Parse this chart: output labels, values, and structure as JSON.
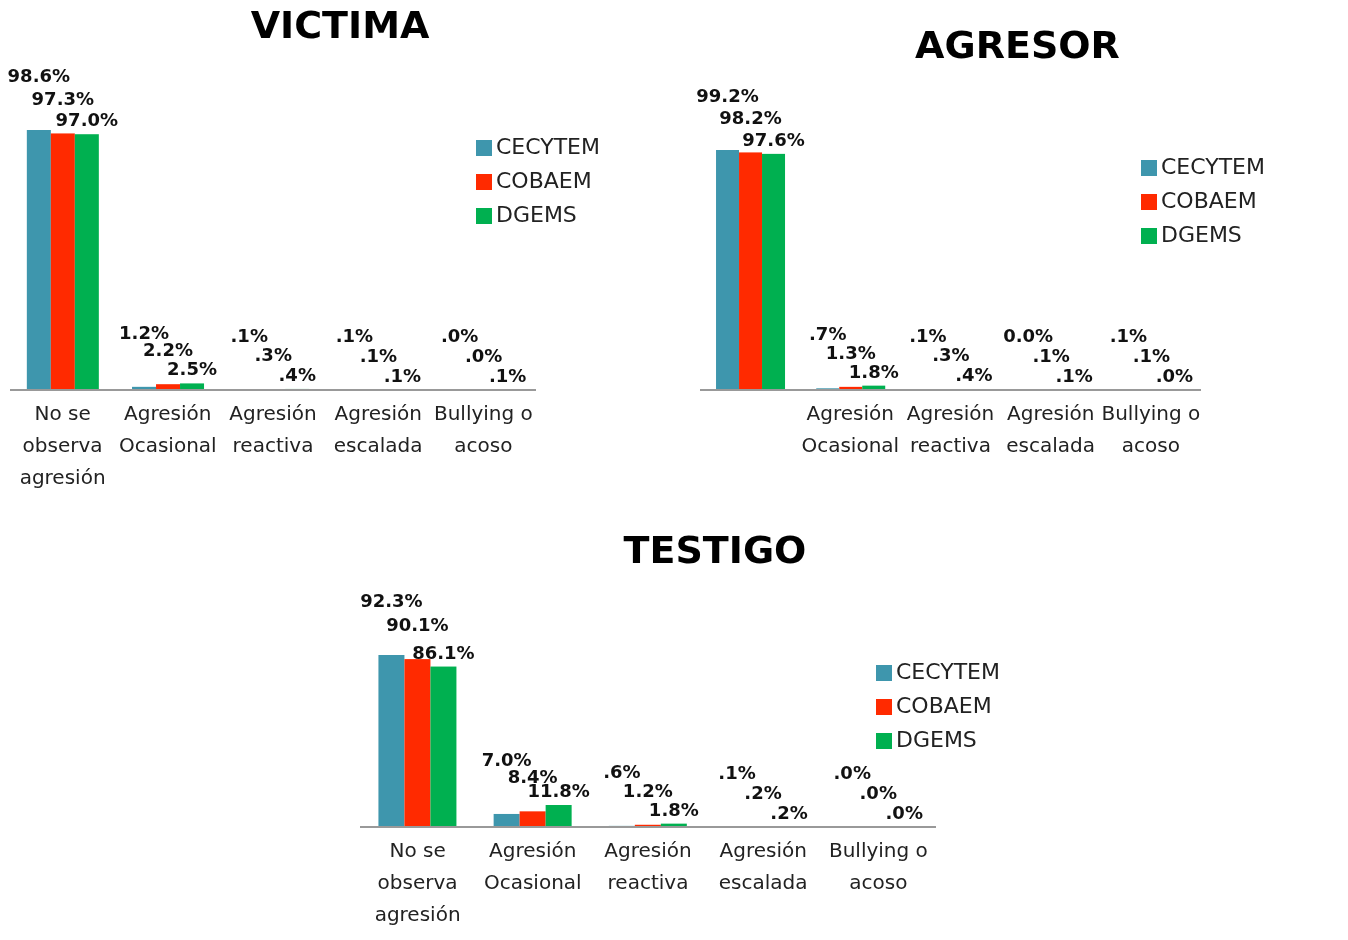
{
  "chart_data": [
    {
      "type": "bar",
      "title": "VICTIMA",
      "categories": [
        "No se observa agresión",
        "Agresión Ocasional",
        "Agresión reactiva",
        "Agresión escalada",
        "Bullying o acoso"
      ],
      "legend": "top right",
      "series": [
        {
          "name": "CECYTEM",
          "color": "#3e96ad",
          "values": [
            98.6,
            1.2,
            0.1,
            0.1,
            0.0
          ],
          "value_labels": [
            "98.6%",
            "1.2%",
            ".1%",
            ".1%",
            ".0%"
          ]
        },
        {
          "name": "COBAEM",
          "color": "#ff2a00",
          "values": [
            97.3,
            2.2,
            0.3,
            0.1,
            0.0
          ],
          "value_labels": [
            "97.3%",
            "2.2%",
            ".3%",
            ".1%",
            ".0%"
          ]
        },
        {
          "name": "DGEMS",
          "color": "#00b050",
          "values": [
            97.0,
            2.5,
            0.4,
            0.1,
            0.1
          ],
          "value_labels": [
            "97.0%",
            "2.5%",
            ".4%",
            ".1%",
            ".1%"
          ]
        }
      ]
    },
    {
      "type": "bar",
      "title": "AGRESOR",
      "categories": [
        null,
        "Agresión Ocasional",
        "Agresión reactiva",
        "Agresión escalada",
        "Bullying o acoso"
      ],
      "legend": "top right",
      "series": [
        {
          "name": "CECYTEM",
          "color": "#3e96ad",
          "values": [
            99.2,
            0.7,
            0.1,
            0.0,
            0.1
          ],
          "value_labels": [
            "99.2%",
            ".7%",
            ".1%",
            "0.0%",
            ".1%"
          ]
        },
        {
          "name": "COBAEM",
          "color": "#ff2a00",
          "values": [
            98.2,
            1.3,
            0.3,
            0.1,
            0.1
          ],
          "value_labels": [
            "98.2%",
            "1.3%",
            ".3%",
            ".1%",
            ".1%"
          ]
        },
        {
          "name": "DGEMS",
          "color": "#00b050",
          "values": [
            97.6,
            1.8,
            0.4,
            0.1,
            0.0
          ],
          "value_labels": [
            "97.6%",
            "1.8%",
            ".4%",
            ".1%",
            ".0%"
          ]
        }
      ]
    },
    {
      "type": "bar",
      "title": "TESTIGO",
      "categories": [
        "No se observa agresión",
        "Agresión Ocasional",
        "Agresión reactiva",
        "Agresión escalada",
        "Bullying o acoso"
      ],
      "legend": "top right",
      "series": [
        {
          "name": "CECYTEM",
          "color": "#3e96ad",
          "values": [
            92.3,
            7.0,
            0.6,
            0.1,
            0.0
          ],
          "value_labels": [
            "92.3%",
            "7.0%",
            ".6%",
            ".1%",
            ".0%"
          ]
        },
        {
          "name": "COBAEM",
          "color": "#ff2a00",
          "values": [
            90.1,
            8.4,
            1.2,
            0.2,
            0.0
          ],
          "value_labels": [
            "90.1%",
            "8.4%",
            "1.2%",
            ".2%",
            ".0%"
          ]
        },
        {
          "name": "DGEMS",
          "color": "#00b050",
          "values": [
            86.1,
            11.8,
            1.8,
            0.2,
            0.0
          ],
          "value_labels": [
            "86.1%",
            "11.8%",
            "1.8%",
            ".2%",
            ".0%"
          ]
        }
      ]
    }
  ]
}
